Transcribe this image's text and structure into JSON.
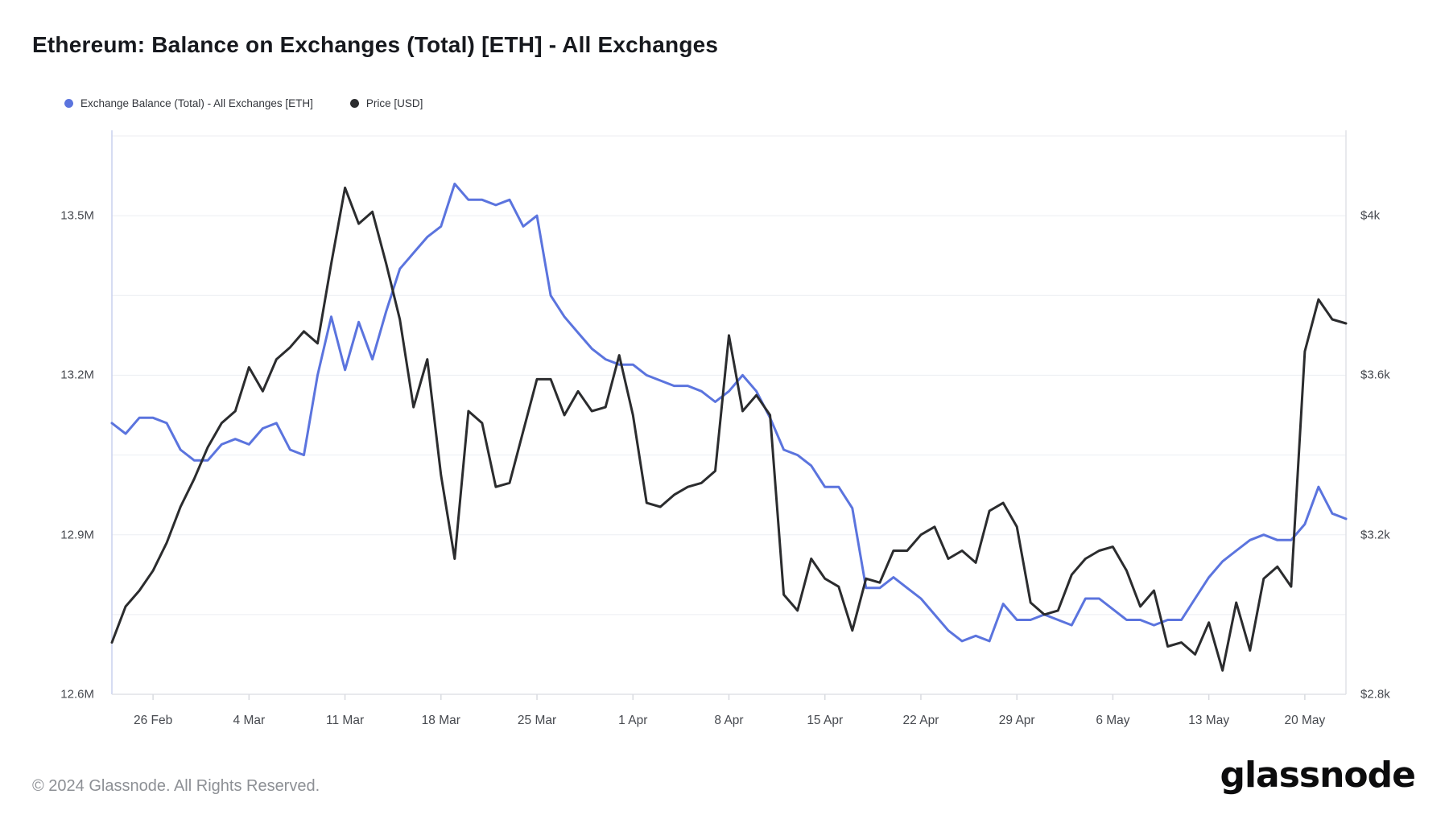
{
  "header": {
    "title": "Ethereum: Balance on Exchanges (Total) [ETH] - All Exchanges"
  },
  "legend": [
    {
      "label": "Exchange Balance (Total) - All Exchanges [ETH]",
      "color": "#5b74de"
    },
    {
      "label": "Price [USD]",
      "color": "#2b2c2e"
    }
  ],
  "footer": {
    "copyright": "© 2024 Glassnode. All Rights Reserved.",
    "logo_text": "glassnode"
  },
  "colors": {
    "balance_line": "#5b74de",
    "price_line": "#2b2c2e",
    "gridline": "#eceef2",
    "axis_line_left": "#c9d0ee",
    "axis_line_other": "#e0e2e7",
    "tick_mark": "#d9dbe0"
  },
  "chart_data": {
    "type": "line",
    "title": "Ethereum: Balance on Exchanges (Total) [ETH] - All Exchanges",
    "grid": true,
    "legend_position": "top-left",
    "x_tick_labels": [
      {
        "label": "26 Feb",
        "index": 3
      },
      {
        "label": "4 Mar",
        "index": 10
      },
      {
        "label": "11 Mar",
        "index": 17
      },
      {
        "label": "18 Mar",
        "index": 24
      },
      {
        "label": "25 Mar",
        "index": 31
      },
      {
        "label": "1 Apr",
        "index": 38
      },
      {
        "label": "8 Apr",
        "index": 45
      },
      {
        "label": "15 Apr",
        "index": 52
      },
      {
        "label": "22 Apr",
        "index": 59
      },
      {
        "label": "29 Apr",
        "index": 66
      },
      {
        "label": "6 May",
        "index": 73
      },
      {
        "label": "13 May",
        "index": 80
      },
      {
        "label": "20 May",
        "index": 87
      }
    ],
    "y_axis_left": {
      "series": "Exchange Balance (Total) - All Exchanges [ETH]",
      "range_min": 12.6,
      "range_max": 13.65,
      "unit": "M ETH",
      "ticks": [
        {
          "label": "13.5M",
          "value": 13.5
        },
        {
          "label": "13.2M",
          "value": 13.2
        },
        {
          "label": "12.9M",
          "value": 12.9
        },
        {
          "label": "12.6M",
          "value": 12.6
        }
      ]
    },
    "y_axis_right": {
      "series": "Price [USD]",
      "range_min": 2800,
      "range_max": 4200,
      "unit": "USD",
      "ticks": [
        {
          "label": "$4k",
          "value": 4000
        },
        {
          "label": "$3.6k",
          "value": 3600
        },
        {
          "label": "$3.2k",
          "value": 3200
        },
        {
          "label": "$2.8k",
          "value": 2800
        }
      ]
    },
    "dates": [
      "2024-02-23",
      "2024-02-24",
      "2024-02-25",
      "2024-02-26",
      "2024-02-27",
      "2024-02-28",
      "2024-02-29",
      "2024-03-01",
      "2024-03-02",
      "2024-03-03",
      "2024-03-04",
      "2024-03-05",
      "2024-03-06",
      "2024-03-07",
      "2024-03-08",
      "2024-03-09",
      "2024-03-10",
      "2024-03-11",
      "2024-03-12",
      "2024-03-13",
      "2024-03-14",
      "2024-03-15",
      "2024-03-16",
      "2024-03-17",
      "2024-03-18",
      "2024-03-19",
      "2024-03-20",
      "2024-03-21",
      "2024-03-22",
      "2024-03-23",
      "2024-03-24",
      "2024-03-25",
      "2024-03-26",
      "2024-03-27",
      "2024-03-28",
      "2024-03-29",
      "2024-03-30",
      "2024-03-31",
      "2024-04-01",
      "2024-04-02",
      "2024-04-03",
      "2024-04-04",
      "2024-04-05",
      "2024-04-06",
      "2024-04-07",
      "2024-04-08",
      "2024-04-09",
      "2024-04-10",
      "2024-04-11",
      "2024-04-12",
      "2024-04-13",
      "2024-04-14",
      "2024-04-15",
      "2024-04-16",
      "2024-04-17",
      "2024-04-18",
      "2024-04-19",
      "2024-04-20",
      "2024-04-21",
      "2024-04-22",
      "2024-04-23",
      "2024-04-24",
      "2024-04-25",
      "2024-04-26",
      "2024-04-27",
      "2024-04-28",
      "2024-04-29",
      "2024-04-30",
      "2024-05-01",
      "2024-05-02",
      "2024-05-03",
      "2024-05-04",
      "2024-05-05",
      "2024-05-06",
      "2024-05-07",
      "2024-05-08",
      "2024-05-09",
      "2024-05-10",
      "2024-05-11",
      "2024-05-12",
      "2024-05-13",
      "2024-05-14",
      "2024-05-15",
      "2024-05-16",
      "2024-05-17",
      "2024-05-18",
      "2024-05-19",
      "2024-05-20",
      "2024-05-21",
      "2024-05-22",
      "2024-05-23"
    ],
    "series": [
      {
        "name": "Exchange Balance (Total) - All Exchanges [ETH]",
        "axis": "left",
        "color": "#5b74de",
        "values": [
          13.11,
          13.09,
          13.12,
          13.12,
          13.11,
          13.06,
          13.04,
          13.04,
          13.07,
          13.08,
          13.07,
          13.1,
          13.11,
          13.06,
          13.05,
          13.2,
          13.31,
          13.21,
          13.3,
          13.23,
          13.32,
          13.4,
          13.43,
          13.46,
          13.48,
          13.56,
          13.53,
          13.53,
          13.52,
          13.53,
          13.48,
          13.5,
          13.35,
          13.31,
          13.28,
          13.25,
          13.23,
          13.22,
          13.22,
          13.2,
          13.19,
          13.18,
          13.18,
          13.17,
          13.15,
          13.17,
          13.2,
          13.17,
          13.12,
          13.06,
          13.05,
          13.03,
          12.99,
          12.99,
          12.95,
          12.8,
          12.8,
          12.82,
          12.8,
          12.78,
          12.75,
          12.72,
          12.7,
          12.71,
          12.7,
          12.77,
          12.74,
          12.74,
          12.75,
          12.74,
          12.73,
          12.78,
          12.78,
          12.76,
          12.74,
          12.74,
          12.73,
          12.74,
          12.74,
          12.78,
          12.82,
          12.85,
          12.87,
          12.89,
          12.9,
          12.89,
          12.89,
          12.92,
          12.99,
          12.94,
          12.93
        ]
      },
      {
        "name": "Price [USD]",
        "axis": "right",
        "color": "#2b2c2e",
        "values": [
          2930,
          3020,
          3060,
          3110,
          3180,
          3270,
          3340,
          3420,
          3480,
          3510,
          3620,
          3560,
          3640,
          3670,
          3710,
          3680,
          3880,
          4070,
          3980,
          4010,
          3880,
          3740,
          3520,
          3640,
          3350,
          3140,
          3510,
          3480,
          3320,
          3330,
          3460,
          3590,
          3590,
          3500,
          3560,
          3510,
          3520,
          3650,
          3500,
          3280,
          3270,
          3300,
          3320,
          3330,
          3360,
          3700,
          3510,
          3550,
          3500,
          3050,
          3010,
          3140,
          3090,
          3070,
          2960,
          3090,
          3080,
          3160,
          3160,
          3200,
          3220,
          3140,
          3160,
          3130,
          3260,
          3280,
          3220,
          3030,
          3000,
          3010,
          3100,
          3140,
          3160,
          3170,
          3110,
          3020,
          3060,
          2920,
          2930,
          2900,
          2980,
          2860,
          3030,
          2910,
          3090,
          3120,
          3070,
          3660,
          3790,
          3740,
          3730
        ]
      }
    ]
  }
}
